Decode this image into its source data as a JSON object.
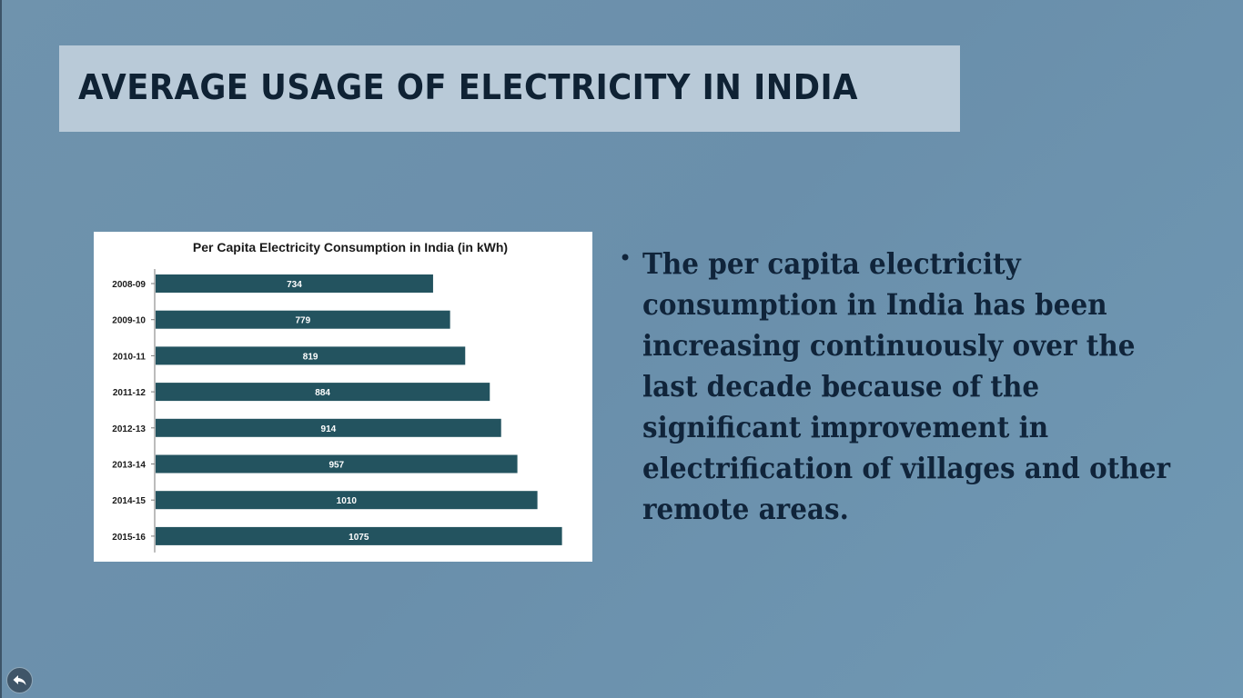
{
  "slide": {
    "title": "AVERAGE USAGE OF ELECTRICITY IN INDIA",
    "bullet": "The per capita electricity consumption in India has been increasing continuously over the last decade because of the significant improvement in electrification of villages and other remote areas."
  },
  "colors": {
    "background": "#6d92ad",
    "title_box": "#b9cad8",
    "title_text": "#0f2234",
    "bar": "#23535f",
    "bar_label": "#ffffff"
  },
  "nav": {
    "back_icon": "back-arrow-icon"
  },
  "chart_data": {
    "type": "bar",
    "orientation": "horizontal",
    "title": "Per Capita Electricity Consumption in India (in kWh)",
    "categories": [
      "2008-09",
      "2009-10",
      "2010-11",
      "2011-12",
      "2012-13",
      "2013-14",
      "2014-15",
      "2015-16"
    ],
    "values": [
      734,
      779,
      819,
      884,
      914,
      957,
      1010,
      1075
    ],
    "xlim": [
      0,
      1100
    ],
    "grid": false,
    "legend": "none",
    "data_labels": true
  }
}
